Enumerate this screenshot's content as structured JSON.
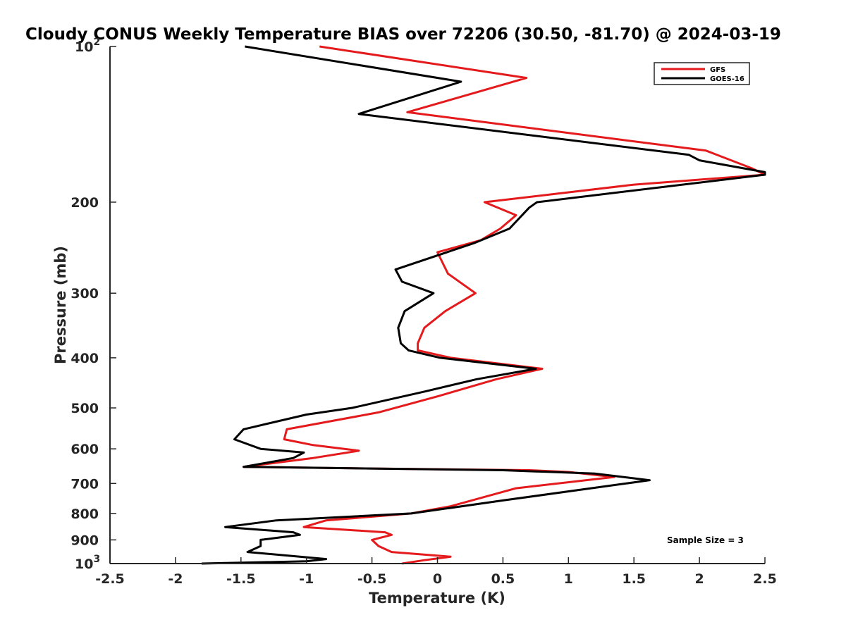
{
  "chart_data": {
    "type": "line",
    "title": "Cloudy CONUS Weekly Temperature BIAS over 72206 (30.50, -81.70) @ 2024-03-19",
    "xlabel": "Temperature (K)",
    "ylabel": "Pressure (mb)",
    "xlim": [
      -2.5,
      2.5
    ],
    "ylim": [
      100,
      1000
    ],
    "yscale": "log",
    "y_reversed": true,
    "x_ticks": [
      "-2.5",
      "-2",
      "-1.5",
      "-1",
      "-0.5",
      "0",
      "0.5",
      "1",
      "1.5",
      "2",
      "2.5"
    ],
    "y_ticks": [
      {
        "value": 100,
        "base": "10",
        "exp": "2"
      },
      {
        "value": 200,
        "label": "200"
      },
      {
        "value": 300,
        "label": "300"
      },
      {
        "value": 400,
        "label": "400"
      },
      {
        "value": 500,
        "label": "500"
      },
      {
        "value": 600,
        "label": "600"
      },
      {
        "value": 700,
        "label": "700"
      },
      {
        "value": 800,
        "label": "800"
      },
      {
        "value": 900,
        "label": "900"
      },
      {
        "value": 1000,
        "base": "10",
        "exp": "3"
      }
    ],
    "legend_position": "top-right",
    "annotation": "Sample Size = 3",
    "series": [
      {
        "name": "GFS",
        "color": "#e41a1c",
        "points": [
          [
            -0.9,
            100
          ],
          [
            0.68,
            115
          ],
          [
            -0.23,
            134
          ],
          [
            2.05,
            159
          ],
          [
            2.4,
            172
          ],
          [
            2.5,
            177
          ],
          [
            1.5,
            185
          ],
          [
            0.36,
            200
          ],
          [
            0.6,
            212
          ],
          [
            0.48,
            225
          ],
          [
            0.33,
            237
          ],
          [
            0.0,
            250
          ],
          [
            0.08,
            275
          ],
          [
            0.29,
            300
          ],
          [
            0.06,
            325
          ],
          [
            -0.1,
            350
          ],
          [
            -0.15,
            375
          ],
          [
            -0.15,
            387
          ],
          [
            0.1,
            400
          ],
          [
            0.8,
            420
          ],
          [
            0.45,
            440
          ],
          [
            0.0,
            475
          ],
          [
            -0.45,
            510
          ],
          [
            -1.15,
            550
          ],
          [
            -1.17,
            575
          ],
          [
            -0.95,
            590
          ],
          [
            -0.6,
            605
          ],
          [
            -0.95,
            625
          ],
          [
            -1.48,
            650
          ],
          [
            -0.5,
            655
          ],
          [
            0.7,
            660
          ],
          [
            1.0,
            665
          ],
          [
            1.35,
            680
          ],
          [
            0.6,
            715
          ],
          [
            0.1,
            775
          ],
          [
            -0.2,
            800
          ],
          [
            -0.85,
            825
          ],
          [
            -1.02,
            850
          ],
          [
            -0.4,
            870
          ],
          [
            -0.35,
            880
          ],
          [
            -0.5,
            900
          ],
          [
            -0.45,
            925
          ],
          [
            -0.35,
            950
          ],
          [
            0.1,
            970
          ],
          [
            -0.1,
            985
          ],
          [
            -0.27,
            1000
          ]
        ]
      },
      {
        "name": "GOES-16",
        "color": "#000000",
        "points": [
          [
            -1.47,
            100
          ],
          [
            0.18,
            117
          ],
          [
            -0.6,
            135
          ],
          [
            1.92,
            162
          ],
          [
            2.0,
            166
          ],
          [
            2.5,
            175
          ],
          [
            2.5,
            177
          ],
          [
            0.76,
            200
          ],
          [
            0.7,
            205
          ],
          [
            0.55,
            225
          ],
          [
            0.28,
            240
          ],
          [
            -0.32,
            270
          ],
          [
            -0.27,
            285
          ],
          [
            -0.03,
            300
          ],
          [
            -0.25,
            325
          ],
          [
            -0.3,
            350
          ],
          [
            -0.28,
            375
          ],
          [
            -0.22,
            387
          ],
          [
            0.02,
            400
          ],
          [
            0.75,
            420
          ],
          [
            0.3,
            440
          ],
          [
            -0.1,
            465
          ],
          [
            -0.65,
            500
          ],
          [
            -1.0,
            515
          ],
          [
            -1.48,
            550
          ],
          [
            -1.55,
            575
          ],
          [
            -1.35,
            600
          ],
          [
            -1.02,
            610
          ],
          [
            -1.1,
            625
          ],
          [
            -1.48,
            650
          ],
          [
            0.5,
            660
          ],
          [
            1.2,
            670
          ],
          [
            1.62,
            690
          ],
          [
            0.5,
            755
          ],
          [
            -0.2,
            800
          ],
          [
            -1.23,
            825
          ],
          [
            -1.62,
            850
          ],
          [
            -1.1,
            870
          ],
          [
            -1.05,
            880
          ],
          [
            -1.35,
            900
          ],
          [
            -1.35,
            925
          ],
          [
            -1.45,
            950
          ],
          [
            -0.85,
            980
          ],
          [
            -1.0,
            990
          ],
          [
            -1.8,
            1000
          ]
        ]
      }
    ]
  }
}
